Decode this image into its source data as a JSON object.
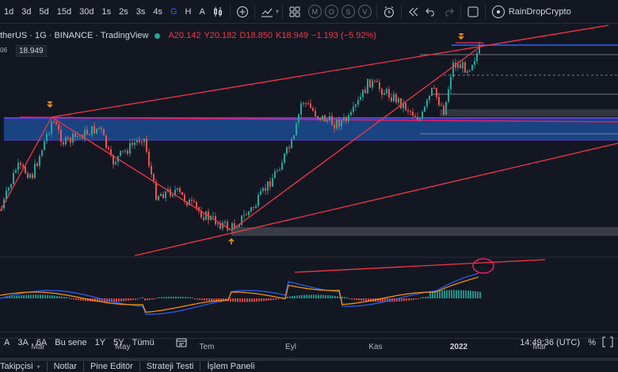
{
  "toolbar": {
    "timeframes": [
      "1d",
      "3d",
      "5d",
      "15d",
      "30d",
      "1s",
      "2s",
      "3s",
      "4s",
      "G",
      "H",
      "A"
    ],
    "active_timeframe": "G",
    "circle_buttons": [
      "M",
      "O",
      "S",
      "V"
    ],
    "username": "RainDropCrypto"
  },
  "legend": {
    "symbol": "therUS · 1G · BINANCE · TradingView",
    "open": "A20.142",
    "high": "Y20.182",
    "low": "D18.850",
    "close": "K18.949",
    "change": "−1.193 (−5.92%)",
    "price_tag": "18.949",
    "price_cut": "06",
    "status_color": "#26a69a",
    "down_color": "#f23645"
  },
  "chart": {
    "colors": {
      "up": "#26a69a",
      "down": "#ef5350",
      "trendline": "#f23645",
      "zone": "#1e53a3",
      "macd": "#2962ff",
      "signal": "#ff9800"
    },
    "markers": [
      "up-arrow-orange",
      "down-arrow-orange"
    ]
  },
  "xaxis": {
    "labels": [
      "Mar",
      "May",
      "Tem",
      "Eyl",
      "Kas",
      "2022",
      "Mar"
    ]
  },
  "bottombar": {
    "ranges": [
      "A",
      "3A",
      "6A",
      "Bu sene",
      "1Y",
      "5Y",
      "Tümü"
    ],
    "time": "14:49:36 (UTC)",
    "percent": "%"
  },
  "tabs": {
    "items": [
      "Takipçisi",
      "Notlar",
      "Pine Editör",
      "Strateji Testi",
      "İşlem Paneli"
    ]
  }
}
